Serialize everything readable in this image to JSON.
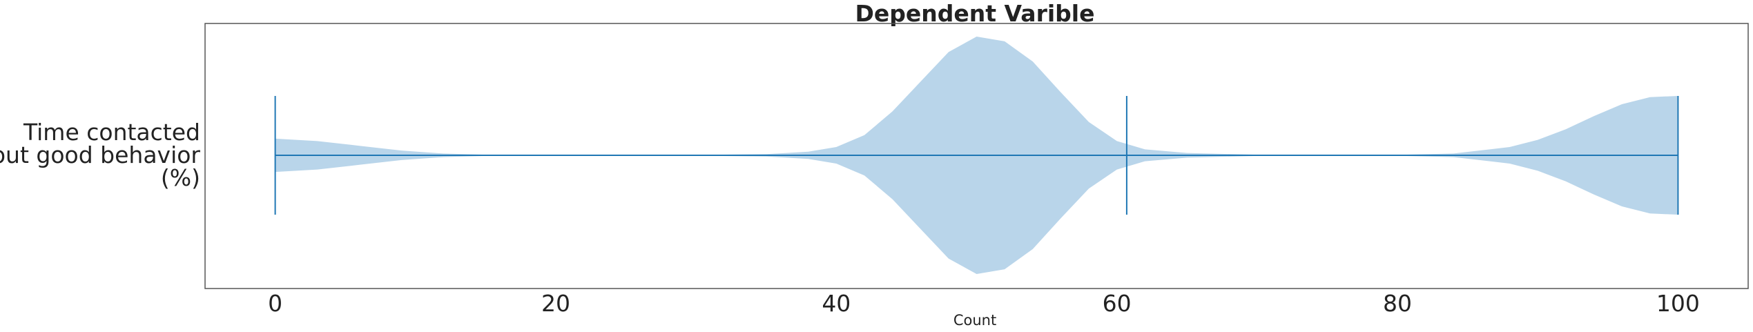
{
  "chart_data": {
    "type": "violin",
    "title": "Dependent Varible",
    "xlabel": "Count",
    "ylabel": "",
    "xlim": [
      -5,
      105
    ],
    "xticks": [
      0,
      20,
      40,
      60,
      80,
      100
    ],
    "category_label_lines": [
      "Time contacted",
      "about good behavior",
      "(%)"
    ],
    "series": [
      {
        "min": 0,
        "max": 100,
        "mean": 60.7,
        "density": {
          "x": [
            0,
            3,
            6,
            9,
            12,
            15,
            20,
            25,
            30,
            35,
            38,
            40,
            42,
            44,
            46,
            48,
            50,
            52,
            54,
            56,
            58,
            60,
            62,
            65,
            70,
            75,
            80,
            84,
            88,
            90,
            92,
            94,
            96,
            98,
            100
          ],
          "w": [
            0.14,
            0.12,
            0.08,
            0.04,
            0.015,
            0.005,
            0.002,
            0.002,
            0.003,
            0.01,
            0.03,
            0.07,
            0.17,
            0.37,
            0.62,
            0.87,
            1.0,
            0.96,
            0.79,
            0.53,
            0.28,
            0.12,
            0.05,
            0.02,
            0.005,
            0.003,
            0.004,
            0.015,
            0.07,
            0.13,
            0.22,
            0.33,
            0.43,
            0.49,
            0.5
          ]
        }
      }
    ],
    "colors": {
      "body": "#b9d5ea",
      "line": "#1f77b4",
      "frame": "#555555",
      "text": "#222222"
    },
    "grid": false,
    "orientation": "horizontal"
  }
}
